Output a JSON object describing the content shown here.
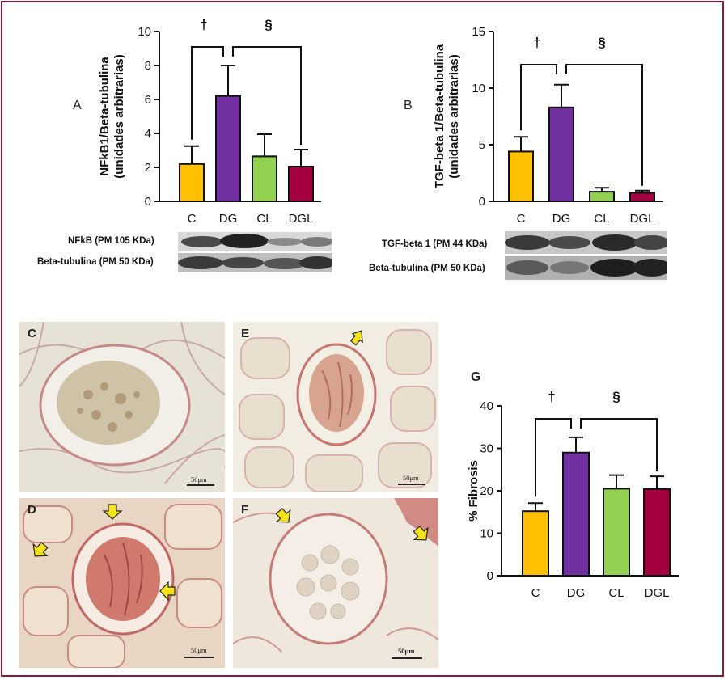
{
  "colors": {
    "C": "#FFC000",
    "DG": "#7030A0",
    "CL": "#92D050",
    "DGL": "#A50040",
    "frame": "#8b1a3a"
  },
  "chart_data": [
    {
      "type": "bar",
      "panel": "A",
      "categories": [
        "C",
        "DG",
        "CL",
        "DGL"
      ],
      "values": [
        2.2,
        6.2,
        2.65,
        2.05
      ],
      "errors": [
        1.05,
        1.8,
        1.3,
        1.0
      ],
      "ylabel_line1": "NFkB1/Beta-tubulina",
      "ylabel_line2": "(unidades arbitrarias)",
      "ylim": [
        0,
        10
      ],
      "yticks": [
        "0",
        "2",
        "4",
        "6",
        "8",
        "10"
      ],
      "annotations": [
        "†",
        "§"
      ]
    },
    {
      "type": "bar",
      "panel": "B",
      "categories": [
        "C",
        "DG",
        "CL",
        "DGL"
      ],
      "values": [
        4.4,
        8.3,
        0.85,
        0.75
      ],
      "errors": [
        1.3,
        2.0,
        0.35,
        0.2
      ],
      "ylabel_line1": "TGF-beta 1/Beta-tubulina",
      "ylabel_line2": "(unidades arbitrarias)",
      "ylim": [
        0,
        15
      ],
      "yticks": [
        "0",
        "5",
        "10",
        "15"
      ],
      "annotations": [
        "†",
        "§"
      ]
    },
    {
      "type": "bar",
      "panel": "G",
      "categories": [
        "C",
        "DG",
        "CL",
        "DGL"
      ],
      "values": [
        15.2,
        29.0,
        20.5,
        20.4
      ],
      "errors": [
        1.9,
        3.6,
        3.2,
        3.0
      ],
      "ylabel_line1": "% Fibrosis",
      "ylabel_line2": "",
      "ylim": [
        0,
        40
      ],
      "yticks": [
        "0",
        "10",
        "20",
        "30",
        "40"
      ],
      "annotations": [
        "†",
        "§"
      ]
    }
  ],
  "blots": {
    "A": [
      "NFkB  (PM 105 KDa)",
      "Beta-tubulina (PM 50 KDa)"
    ],
    "B": [
      "TGF-beta 1 (PM 44 KDa)",
      "Beta-tubulina (PM 50 KDa)"
    ]
  },
  "micrographs": [
    {
      "letter": "C",
      "scale": "50μm"
    },
    {
      "letter": "E",
      "scale": "50μm"
    },
    {
      "letter": "D",
      "scale": "50μm"
    },
    {
      "letter": "F",
      "scale": "50μm"
    }
  ]
}
